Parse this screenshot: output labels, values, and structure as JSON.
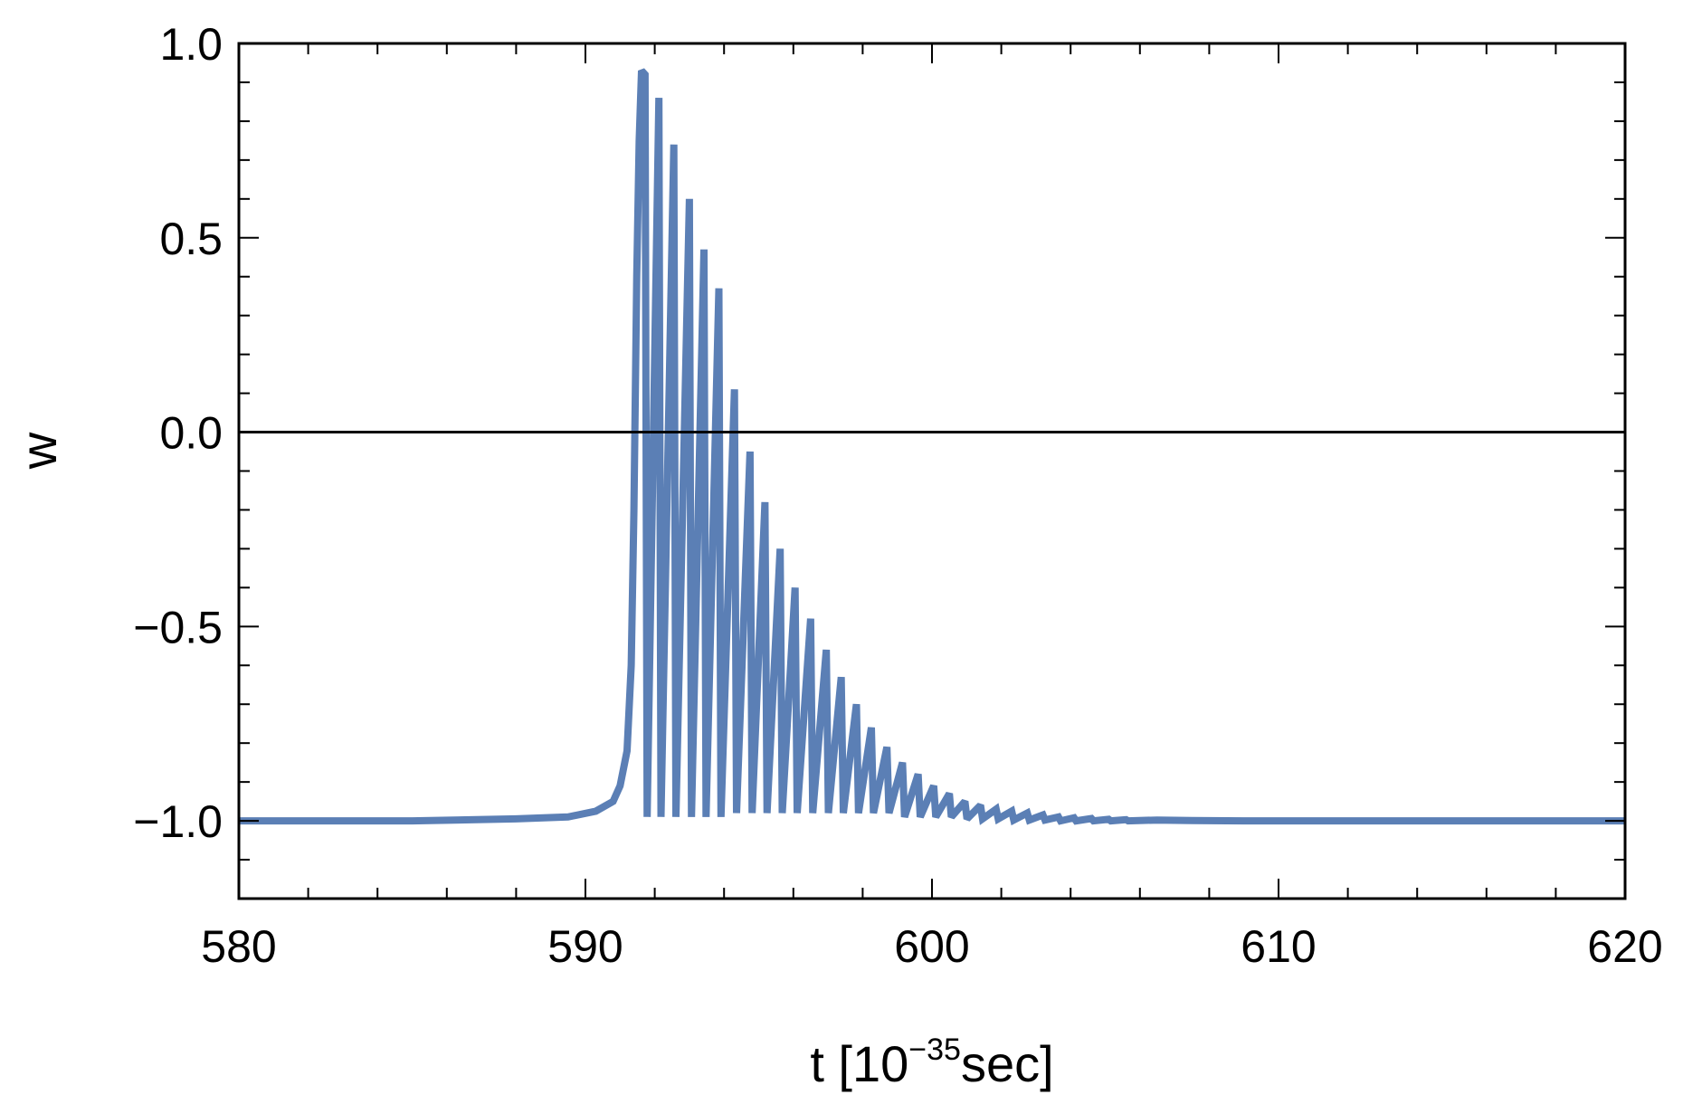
{
  "chart_data": {
    "type": "line",
    "title": "",
    "xlabel": {
      "base": "t [10",
      "exponent": "−35",
      "suffix": "sec]"
    },
    "ylabel": "w",
    "xlim": [
      580,
      620
    ],
    "ylim": [
      -1.2,
      1.0
    ],
    "x_ticks": [
      580,
      590,
      600,
      610,
      620
    ],
    "x_tick_labels": [
      "580",
      "590",
      "600",
      "610",
      "620"
    ],
    "y_ticks": [
      -1.0,
      -0.5,
      0.0,
      0.5,
      1.0
    ],
    "y_tick_labels": [
      "−1.0",
      "−0.5",
      "0.0",
      "0.5",
      "1.0"
    ],
    "x_minor_step": 2,
    "y_minor_step": 0.1,
    "grid": false,
    "reference_line_y": 0.0,
    "series_color": "#5b7fb5",
    "series": [
      {
        "points": [
          [
            580,
            -1.0
          ],
          [
            585,
            -1.0
          ],
          [
            588,
            -0.995
          ],
          [
            589.5,
            -0.99
          ],
          [
            590.3,
            -0.975
          ],
          [
            590.8,
            -0.95
          ],
          [
            591.0,
            -0.91
          ],
          [
            591.2,
            -0.82
          ],
          [
            591.32,
            -0.6
          ],
          [
            591.4,
            -0.2
          ],
          [
            591.48,
            0.4
          ],
          [
            591.55,
            0.75
          ],
          [
            591.62,
            0.93
          ],
          [
            591.72,
            0.92
          ],
          [
            591.78,
            -0.99
          ],
          [
            592.12,
            0.86
          ],
          [
            592.18,
            -0.99
          ],
          [
            592.55,
            0.74
          ],
          [
            592.61,
            -0.99
          ],
          [
            593.0,
            0.6
          ],
          [
            593.06,
            -0.99
          ],
          [
            593.42,
            0.47
          ],
          [
            593.48,
            -0.99
          ],
          [
            593.85,
            0.37
          ],
          [
            593.91,
            -0.99
          ],
          [
            594.3,
            0.11
          ],
          [
            594.36,
            -0.98
          ],
          [
            594.75,
            -0.05
          ],
          [
            594.81,
            -0.98
          ],
          [
            595.18,
            -0.18
          ],
          [
            595.24,
            -0.98
          ],
          [
            595.62,
            -0.3
          ],
          [
            595.68,
            -0.98
          ],
          [
            596.05,
            -0.4
          ],
          [
            596.11,
            -0.98
          ],
          [
            596.5,
            -0.48
          ],
          [
            596.56,
            -0.98
          ],
          [
            596.95,
            -0.56
          ],
          [
            597.01,
            -0.98
          ],
          [
            597.38,
            -0.63
          ],
          [
            597.44,
            -0.98
          ],
          [
            597.82,
            -0.7
          ],
          [
            597.88,
            -0.98
          ],
          [
            598.25,
            -0.76
          ],
          [
            598.31,
            -0.98
          ],
          [
            598.7,
            -0.81
          ],
          [
            598.76,
            -0.98
          ],
          [
            599.15,
            -0.85
          ],
          [
            599.21,
            -0.99
          ],
          [
            599.6,
            -0.88
          ],
          [
            599.66,
            -0.99
          ],
          [
            600.05,
            -0.91
          ],
          [
            600.11,
            -0.99
          ],
          [
            600.5,
            -0.93
          ],
          [
            600.56,
            -0.99
          ],
          [
            600.95,
            -0.95
          ],
          [
            601.01,
            -0.995
          ],
          [
            601.4,
            -0.96
          ],
          [
            601.46,
            -0.995
          ],
          [
            601.85,
            -0.97
          ],
          [
            601.91,
            -0.995
          ],
          [
            602.3,
            -0.975
          ],
          [
            602.36,
            -0.998
          ],
          [
            602.75,
            -0.98
          ],
          [
            602.81,
            -0.998
          ],
          [
            603.2,
            -0.985
          ],
          [
            603.26,
            -0.998
          ],
          [
            603.65,
            -0.99
          ],
          [
            603.71,
            -1.0
          ],
          [
            604.1,
            -0.992
          ],
          [
            604.16,
            -1.0
          ],
          [
            604.6,
            -0.994
          ],
          [
            604.66,
            -1.0
          ],
          [
            605.1,
            -0.996
          ],
          [
            605.16,
            -1.0
          ],
          [
            605.6,
            -0.997
          ],
          [
            605.66,
            -1.0
          ],
          [
            606.5,
            -0.998
          ],
          [
            607.5,
            -0.999
          ],
          [
            609,
            -1.0
          ],
          [
            612,
            -1.0
          ],
          [
            620,
            -1.0
          ]
        ]
      }
    ]
  }
}
